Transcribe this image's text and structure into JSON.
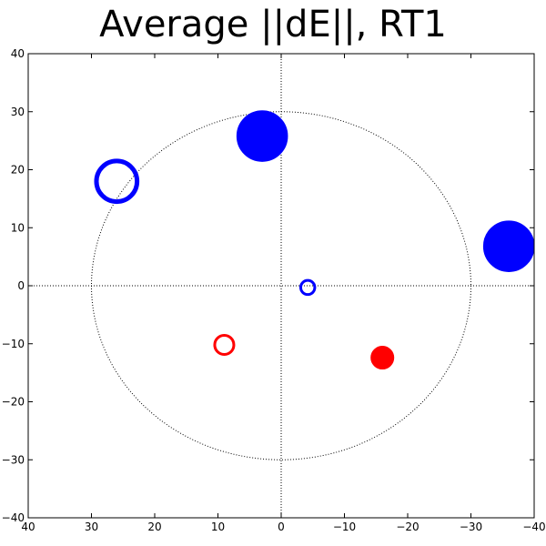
{
  "chart_data": {
    "type": "scatter",
    "title": "Average ||dE||, RT1",
    "xlabel": "",
    "ylabel": "",
    "xlim": [
      40,
      -40
    ],
    "ylim": [
      -40,
      40
    ],
    "x_ticks": [
      "40",
      "30",
      "20",
      "10",
      "0",
      "−10",
      "−20",
      "−30",
      "−40"
    ],
    "y_ticks": [
      "40",
      "30",
      "20",
      "10",
      "0",
      "−10",
      "−20",
      "−30",
      "−40"
    ],
    "grid": false,
    "reference_circle_radius": 30,
    "points": [
      {
        "x": 26,
        "y": 18,
        "radius": 3.5,
        "filled": false,
        "color": "#0000ff"
      },
      {
        "x": 3,
        "y": 25.8,
        "radius": 4,
        "filled": true,
        "color": "#0000ff"
      },
      {
        "x": -36,
        "y": 6.8,
        "radius": 4,
        "filled": true,
        "color": "#0000ff"
      },
      {
        "x": -4.2,
        "y": -0.3,
        "radius": 1.4,
        "filled": false,
        "color": "#0000ff"
      },
      {
        "x": 9,
        "y": -10.2,
        "radius": 1.8,
        "filled": false,
        "color": "#ff0000"
      },
      {
        "x": -16,
        "y": -12.4,
        "radius": 1.8,
        "filled": true,
        "color": "#ff0000"
      }
    ]
  }
}
